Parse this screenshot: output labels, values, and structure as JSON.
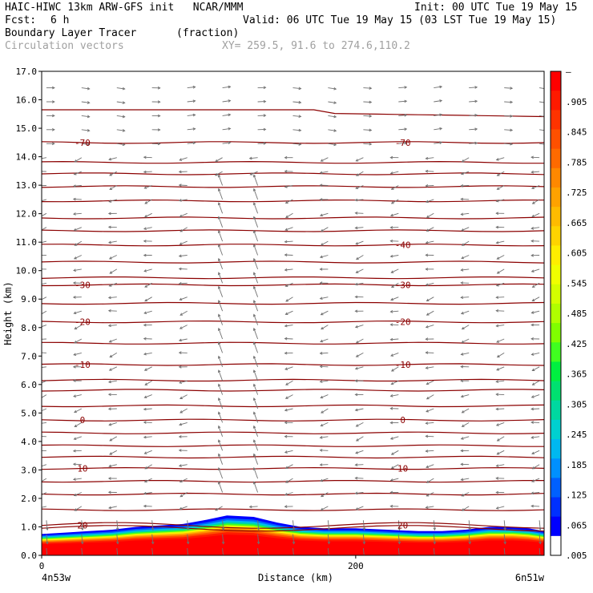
{
  "header": {
    "model_line": "HAIC-HIWC 13km ARW-GFS init   NCAR/MMM",
    "init_line": "Init: 00 UTC Tue 19 May 15",
    "fcst_label": "Fcst:",
    "fcst_value": "6 h",
    "valid_line": "Valid: 06 UTC Tue 19 May 15 (03 LST Tue 19 May 15)",
    "field1_name": "Boundary Layer Tracer",
    "field1_unit": "(fraction)",
    "field2_name": "Circulation vectors",
    "xy_line": "XY= 259.5, 91.6 to 274.6,110.2"
  },
  "chart_data": {
    "type": "heatmap",
    "xlabel": "Distance (km)",
    "ylabel": "Height (km)",
    "xlim": [
      0,
      320
    ],
    "ylim": [
      0.0,
      17.0
    ],
    "x_ticks": [
      {
        "value": 0,
        "label": "0"
      },
      {
        "value": 200,
        "label": "200"
      }
    ],
    "x_end_labels": {
      "left": "4n53w",
      "right": "6n51w"
    },
    "y_ticks": [
      "0.0",
      "1.0",
      "2.0",
      "3.0",
      "4.0",
      "5.0",
      "6.0",
      "7.0",
      "8.0",
      "9.0",
      "10.0",
      "11.0",
      "12.0",
      "13.0",
      "14.0",
      "15.0",
      "16.0",
      "17.0"
    ],
    "colorbar": {
      "labels": [
        "–",
        ".905",
        ".845",
        ".785",
        ".725",
        ".665",
        ".605",
        ".545",
        ".485",
        ".425",
        ".365",
        ".305",
        ".245",
        ".185",
        ".125",
        ".065",
        ".005"
      ],
      "colors": [
        "#ff0000",
        "#ff1a00",
        "#ff3300",
        "#ff5000",
        "#ff6a00",
        "#ff8800",
        "#ffa200",
        "#ffbb00",
        "#ffd400",
        "#ffee00",
        "#f0ff00",
        "#d4ff00",
        "#b0ff00",
        "#80ff00",
        "#40ff20",
        "#00f040",
        "#00e070",
        "#00d8a0",
        "#00d0d0",
        "#00b8f0",
        "#0090ff",
        "#0060ff",
        "#0030ff",
        "#0000ff",
        "#ffffff"
      ]
    },
    "isotherms_C": [
      {
        "label": "-70",
        "y": 14.5
      },
      {
        "label": "-40",
        "y": 10.9
      },
      {
        "label": "-30",
        "y": 9.5
      },
      {
        "label": "-20",
        "y": 8.2
      },
      {
        "label": "-10",
        "y": 6.7
      },
      {
        "label": "0",
        "y": 4.75
      },
      {
        "label": "10",
        "y": 3.05
      },
      {
        "label": "20",
        "y": 1.05
      }
    ],
    "contour_levels_km": [
      0.95,
      1.05,
      1.6,
      2.15,
      2.6,
      3.05,
      3.45,
      3.85,
      4.3,
      4.75,
      5.25,
      5.8,
      6.15,
      6.7,
      7.45,
      8.2,
      8.85,
      9.5,
      9.75,
      10.3,
      10.9,
      11.4,
      11.85,
      12.45,
      12.95,
      13.4,
      13.8,
      14.5,
      15.65
    ],
    "tracer_layer": {
      "top_km": [
        0.75,
        0.8,
        0.85,
        0.9,
        1.0,
        1.05,
        1.1,
        1.25,
        1.4,
        1.35,
        1.15,
        1.0,
        0.95,
        0.95,
        0.9,
        0.85,
        0.85,
        0.9,
        1.0,
        1.0,
        0.95,
        0.85
      ],
      "top_x_km": [
        0,
        15,
        30,
        45,
        60,
        75,
        90,
        105,
        118,
        135,
        150,
        165,
        180,
        200,
        220,
        240,
        255,
        270,
        285,
        300,
        310,
        320
      ],
      "core_value": 0.965
    }
  }
}
